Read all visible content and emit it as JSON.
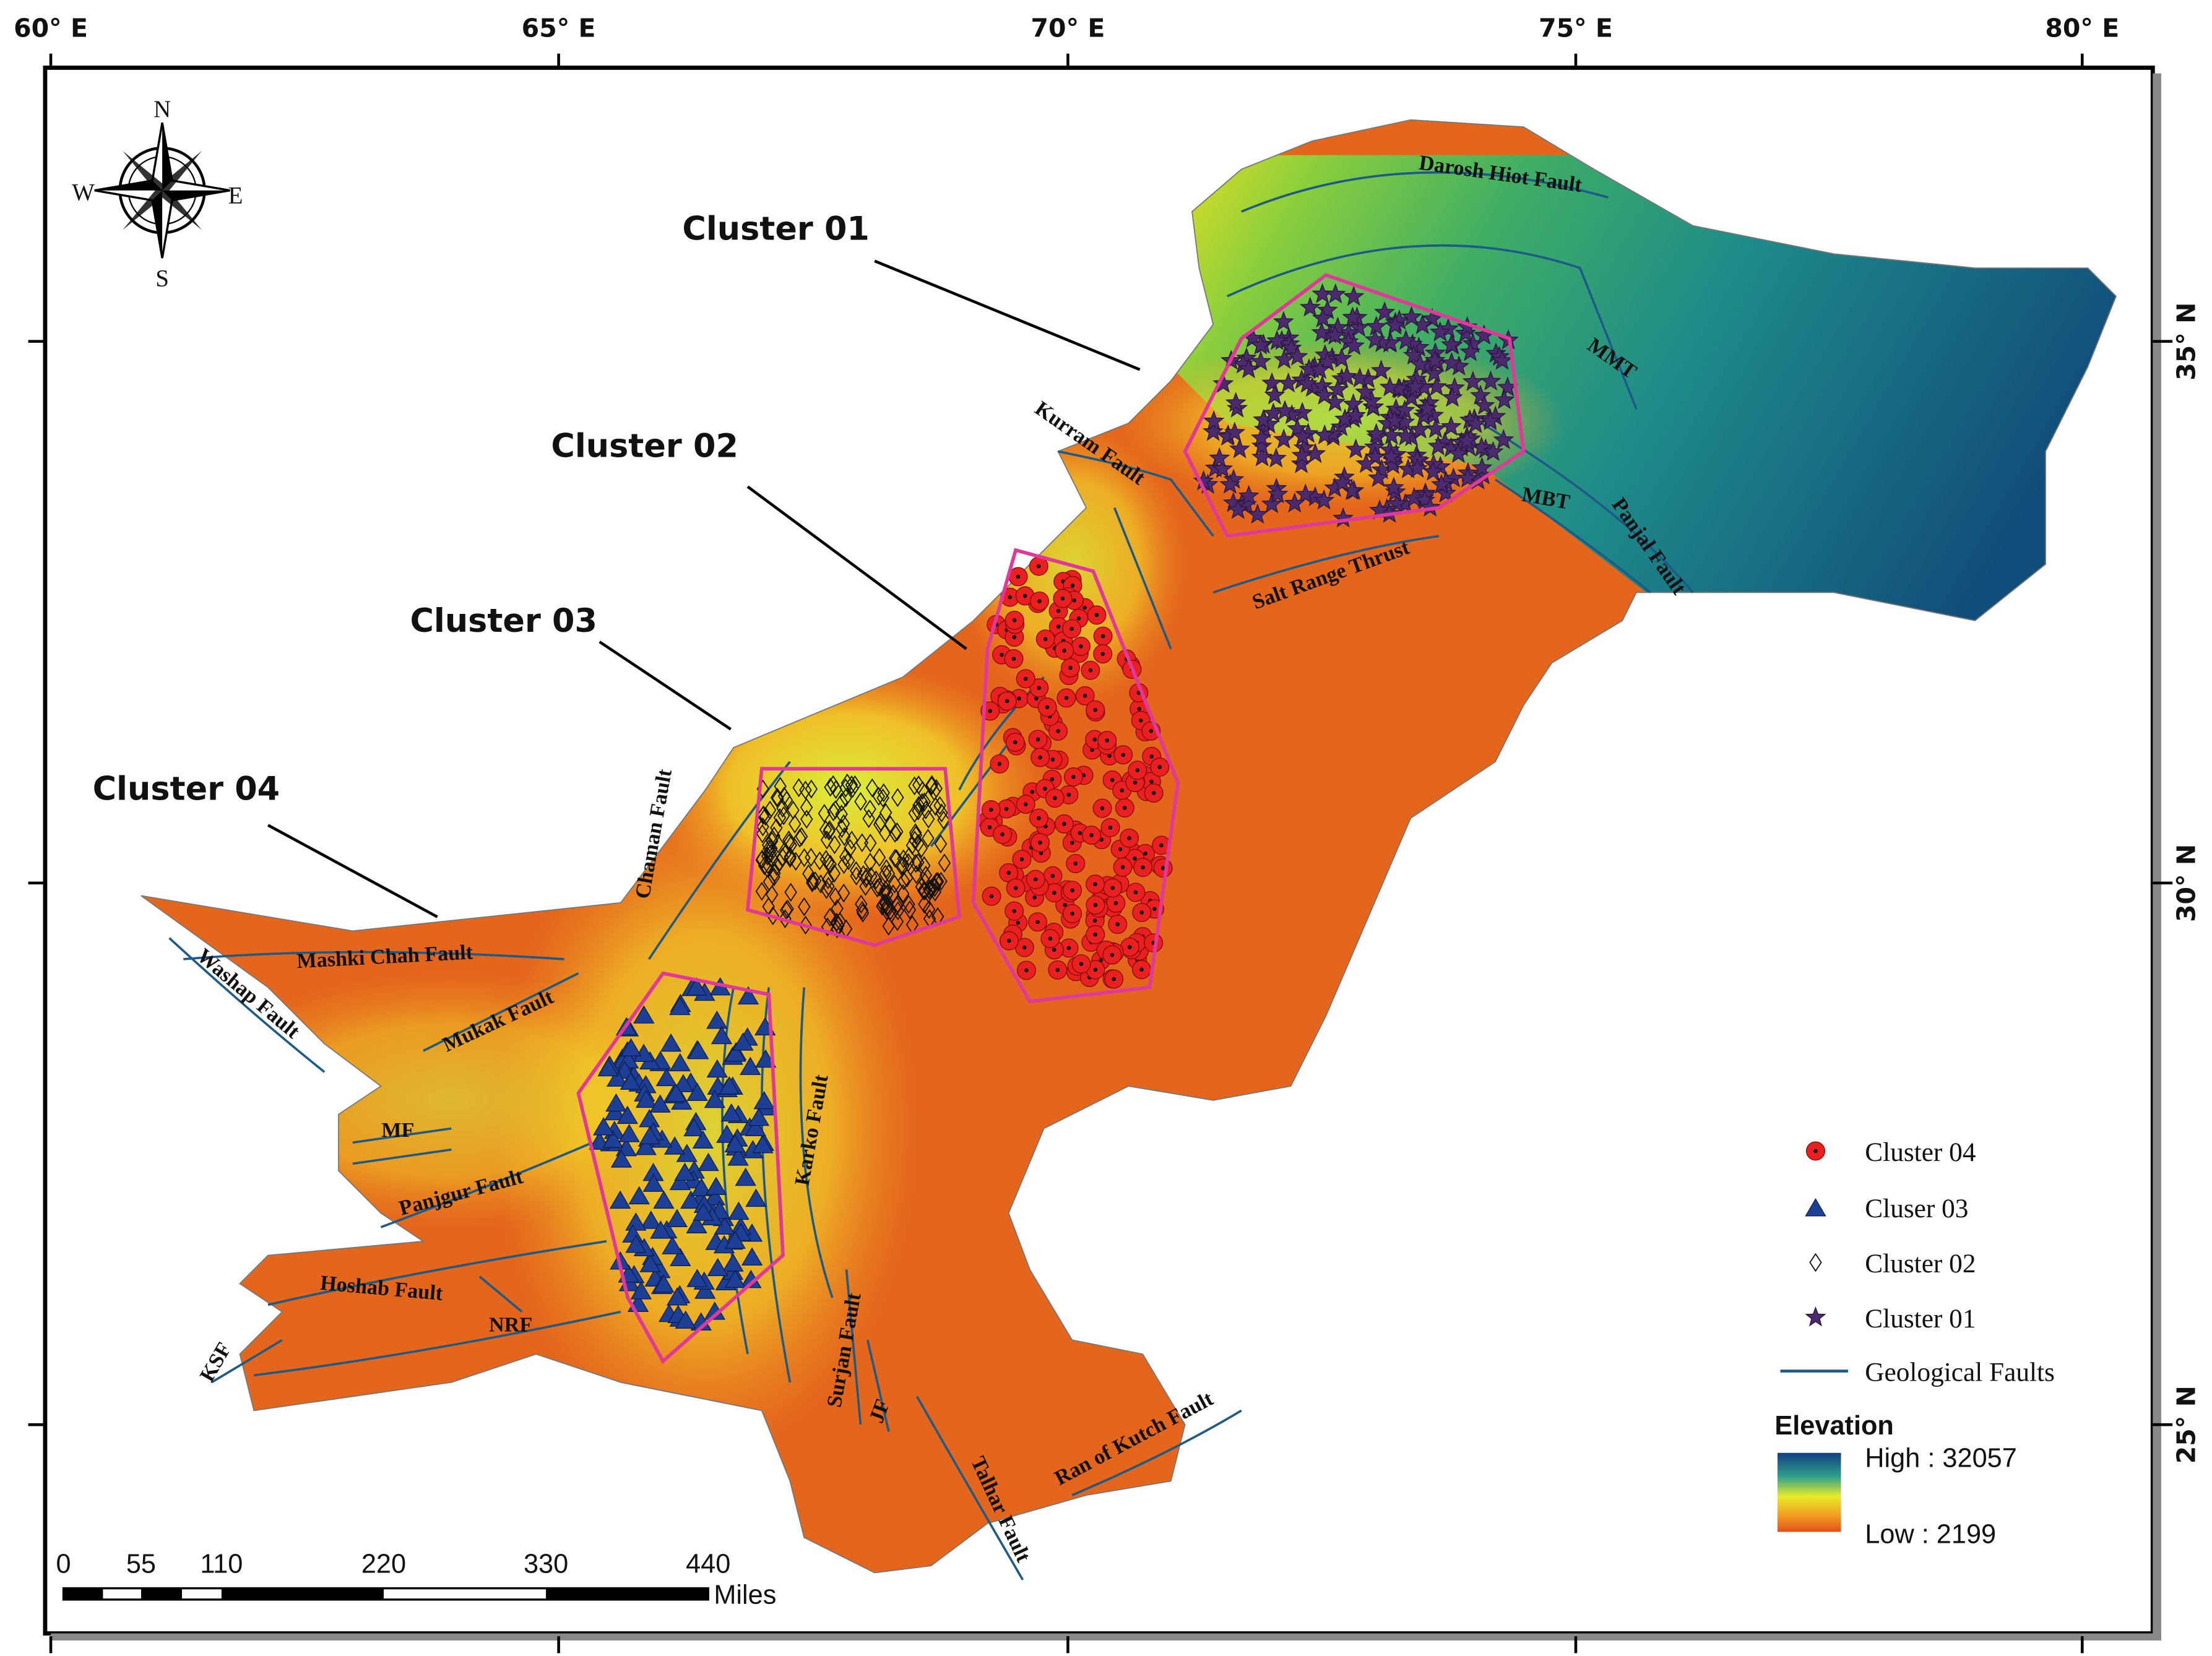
{
  "axes": {
    "top_longitudes": [
      "60° E",
      "65° E",
      "70° E",
      "75° E",
      "80° E"
    ],
    "right_latitudes": [
      "35° N",
      "30° N",
      "25° N"
    ]
  },
  "compass": {
    "north": "N",
    "south": "S",
    "east": "E",
    "west": "W"
  },
  "clusters": [
    {
      "label": "Cluster 01"
    },
    {
      "label": "Cluster 02"
    },
    {
      "label": "Cluster 03"
    },
    {
      "label": "Cluster 04"
    }
  ],
  "fault_labels": [
    "Darosh Hiot Fault",
    "MMT",
    "MBT",
    "Panjal Fault",
    "Kurram Fault",
    "Salt Range Thrust",
    "Chaman Fault",
    "Mashki Chah Fault",
    "Washap Fault",
    "Mukak Fault",
    "MF",
    "Panjgur Fault",
    "Hoshab Fault",
    "NRF",
    "KSF",
    "Karko Fault",
    "Surjan Fault",
    "JF",
    "Talhar Fault",
    "Ran of Kutch Fault"
  ],
  "legend": {
    "items": [
      "Cluster 04",
      "Cluser 03",
      "Cluster 02",
      "Cluster 01",
      "Geological Faults"
    ],
    "elevation": {
      "title": "Elevation",
      "high": "High : 32057",
      "low": "Low : 2199"
    }
  },
  "scale_bar": {
    "labels": [
      "0",
      "55",
      "110",
      "220",
      "330",
      "440"
    ],
    "unit": "Miles"
  }
}
